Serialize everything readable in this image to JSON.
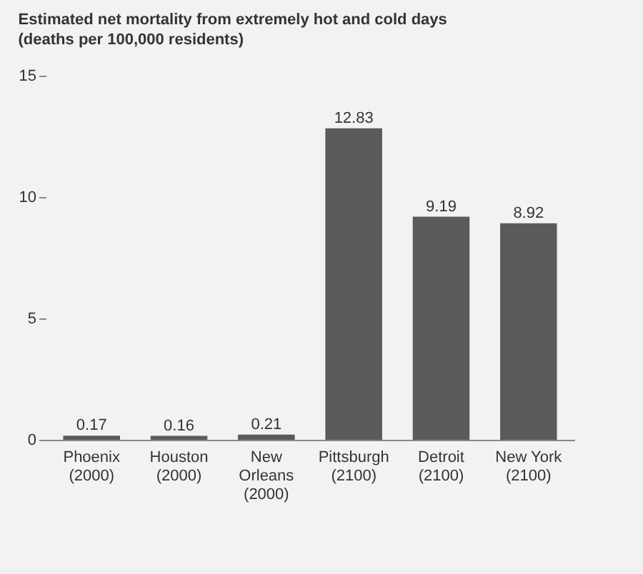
{
  "chart_data": {
    "type": "bar",
    "title": "Estimated net mortality from extremely hot and cold days",
    "subtitle": "(deaths per 100,000 residents)",
    "categories": [
      "Phoenix\n(2000)",
      "Houston\n(2000)",
      "New\nOrleans\n(2000)",
      "Pittsburgh\n(2100)",
      "Detroit\n(2100)",
      "New York\n(2100)"
    ],
    "values": [
      0.17,
      0.16,
      0.21,
      12.83,
      9.19,
      8.92
    ],
    "color": "#5a5a5a",
    "ylim": [
      0,
      15
    ],
    "yticks": [
      0,
      5,
      10,
      15
    ],
    "grid": false,
    "data_labels": true
  }
}
